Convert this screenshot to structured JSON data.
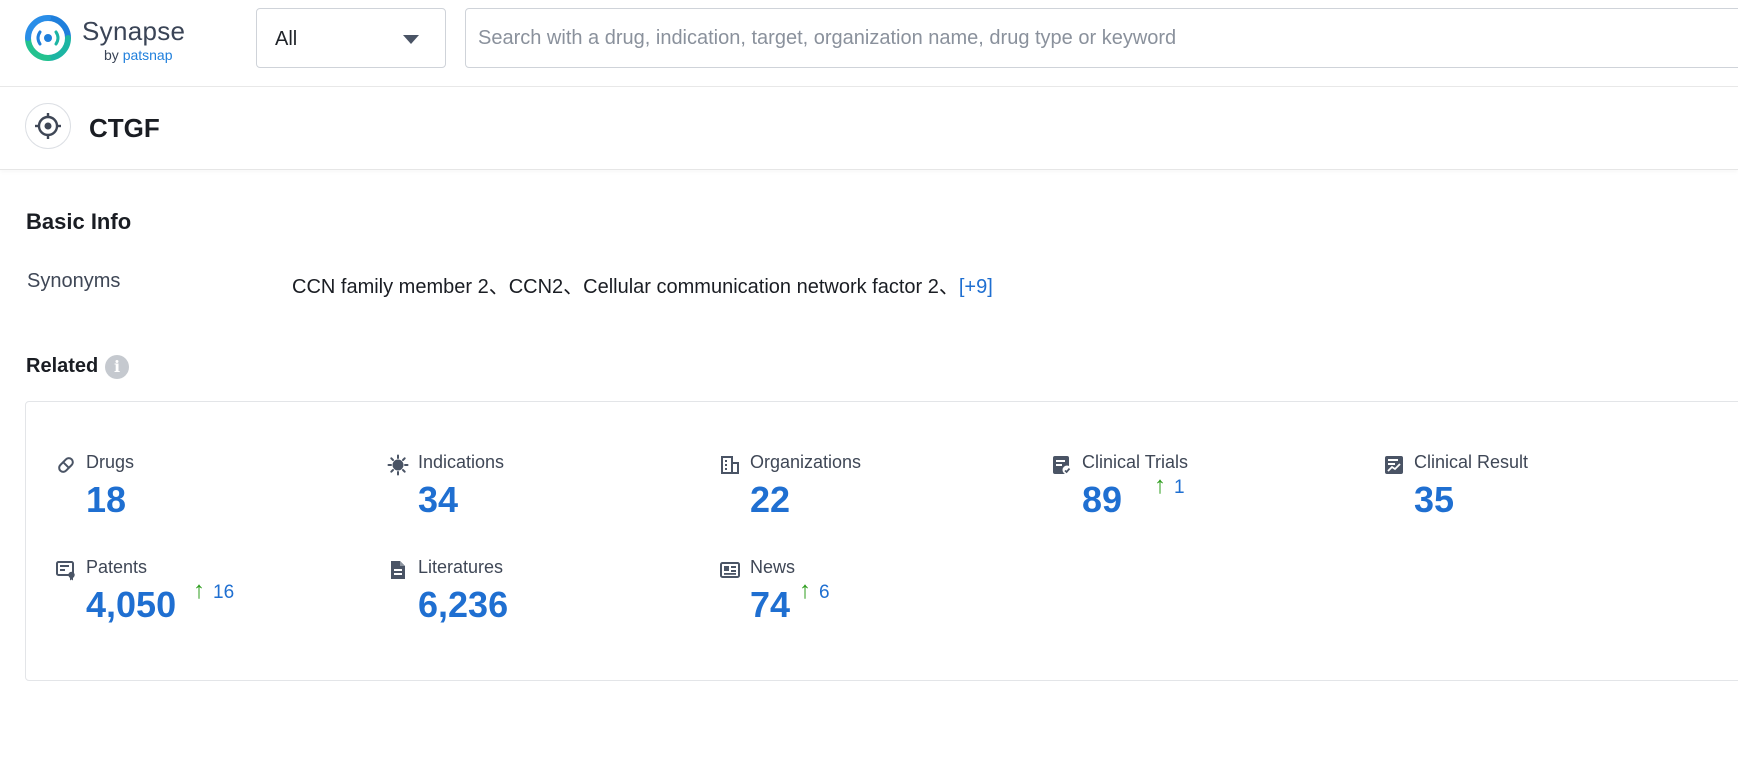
{
  "header": {
    "logo": {
      "title": "Synapse",
      "sub_prefix": "by ",
      "sub_brand": "patsnap"
    },
    "scope_select": {
      "value": "All"
    },
    "search": {
      "placeholder": "Search with a drug, indication, target, organization name, drug type or keyword",
      "value": ""
    }
  },
  "target": {
    "name": "CTGF",
    "icon": "target-crosshair-icon"
  },
  "basic_info": {
    "title": "Basic Info",
    "synonyms_label": "Synonyms",
    "synonyms_text": "CCN family member 2、CCN2、Cellular communication network factor 2、",
    "synonyms_more": "[+9]"
  },
  "related": {
    "title": "Related",
    "info_icon": "i",
    "stats": [
      {
        "label": "Drugs",
        "value": "18",
        "delta": "",
        "icon": "pill-icon"
      },
      {
        "label": "Indications",
        "value": "34",
        "delta": "",
        "icon": "virus-icon"
      },
      {
        "label": "Organizations",
        "value": "22",
        "delta": "",
        "icon": "building-icon"
      },
      {
        "label": "Clinical Trials",
        "value": "89",
        "delta": "1",
        "icon": "clipboard-icon"
      },
      {
        "label": "Clinical Result",
        "value": "35",
        "delta": "",
        "icon": "chart-report-icon"
      },
      {
        "label": "Patents",
        "value": "4,050",
        "delta": "16",
        "icon": "certificate-icon"
      },
      {
        "label": "Literatures",
        "value": "6,236",
        "delta": "",
        "icon": "document-icon"
      },
      {
        "label": "News",
        "value": "74",
        "delta": "6",
        "icon": "newspaper-icon"
      }
    ],
    "delta_arrow": "↑"
  },
  "colors": {
    "accent": "#1f6fd1",
    "increase": "#2f9e1f",
    "logo_teal": "#1cb5a3"
  }
}
